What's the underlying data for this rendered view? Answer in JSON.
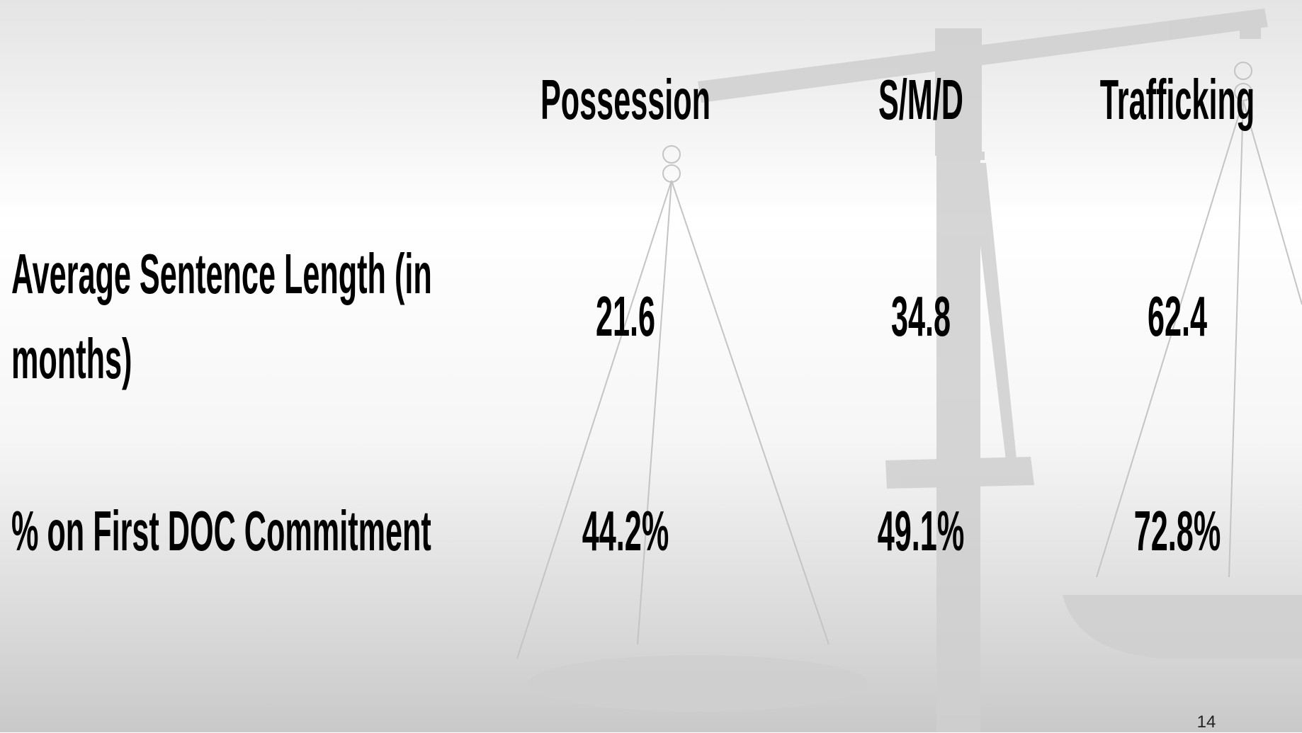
{
  "table": {
    "columns": [
      "Possession",
      "S/M/D",
      "Trafficking"
    ],
    "rows": [
      {
        "label": "Average Sentence Length (in months)",
        "cells": [
          "21.6",
          "34.8",
          "62.4"
        ]
      },
      {
        "label": "% on First DOC Commitment",
        "cells": [
          "44.2%",
          "49.1%",
          "72.8%"
        ]
      }
    ]
  },
  "page_number": "14"
}
